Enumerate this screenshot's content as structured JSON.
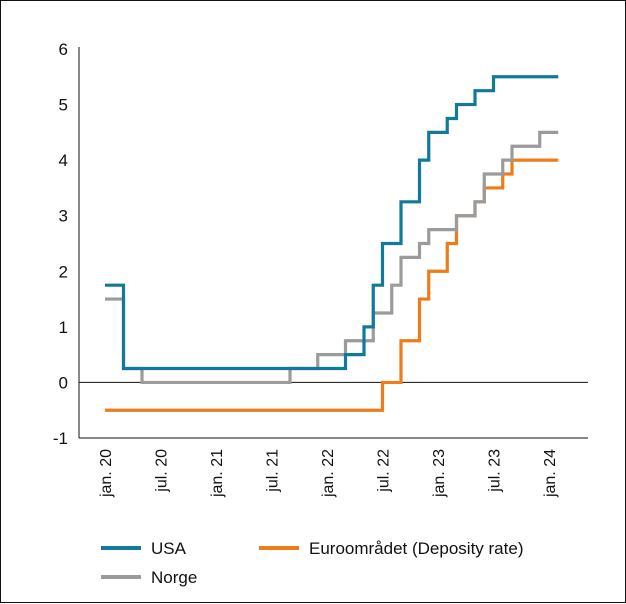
{
  "chart_data": {
    "type": "line",
    "step": true,
    "title": "",
    "xlabel": "",
    "ylabel": "",
    "ylim": [
      -1,
      6
    ],
    "yticks": [
      -1,
      0,
      1,
      2,
      3,
      4,
      5,
      6
    ],
    "xlim": [
      "2020-01",
      "2024-02"
    ],
    "xticks": [
      {
        "label": "jan. 20",
        "date": "2020-01"
      },
      {
        "label": "jul. 20",
        "date": "2020-07"
      },
      {
        "label": "jan. 21",
        "date": "2021-01"
      },
      {
        "label": "jul. 21",
        "date": "2021-07"
      },
      {
        "label": "jan. 22",
        "date": "2022-01"
      },
      {
        "label": "jul. 22",
        "date": "2022-07"
      },
      {
        "label": "jan. 23",
        "date": "2023-01"
      },
      {
        "label": "jul. 23",
        "date": "2023-07"
      },
      {
        "label": "jan. 24",
        "date": "2024-01"
      }
    ],
    "grid": false,
    "legend_position": "bottom",
    "series": [
      {
        "name": "USA",
        "color": "#11799a",
        "points": [
          [
            "2020-01",
            1.75
          ],
          [
            "2020-03",
            1.25
          ],
          [
            "2020-03",
            0.25
          ],
          [
            "2022-03",
            0.5
          ],
          [
            "2022-05",
            1.0
          ],
          [
            "2022-06",
            1.75
          ],
          [
            "2022-07",
            2.5
          ],
          [
            "2022-09",
            3.25
          ],
          [
            "2022-11",
            4.0
          ],
          [
            "2022-12",
            4.5
          ],
          [
            "2023-02",
            4.75
          ],
          [
            "2023-03",
            5.0
          ],
          [
            "2023-05",
            5.25
          ],
          [
            "2023-07",
            5.5
          ],
          [
            "2024-02",
            5.5
          ]
        ]
      },
      {
        "name": "Euroområdet (Deposity rate)",
        "color": "#ed7d1a",
        "points": [
          [
            "2020-01",
            -0.5
          ],
          [
            "2022-07",
            0.0
          ],
          [
            "2022-09",
            0.75
          ],
          [
            "2022-11",
            1.5
          ],
          [
            "2022-12",
            2.0
          ],
          [
            "2023-02",
            2.5
          ],
          [
            "2023-03",
            3.0
          ],
          [
            "2023-05",
            3.25
          ],
          [
            "2023-06",
            3.5
          ],
          [
            "2023-08",
            3.75
          ],
          [
            "2023-09",
            4.0
          ],
          [
            "2024-02",
            4.0
          ]
        ]
      },
      {
        "name": "Norge",
        "color": "#9b9b9b",
        "points": [
          [
            "2020-01",
            1.5
          ],
          [
            "2020-03",
            1.0
          ],
          [
            "2020-03",
            0.25
          ],
          [
            "2020-05",
            0.0
          ],
          [
            "2021-09",
            0.25
          ],
          [
            "2021-12",
            0.5
          ],
          [
            "2022-03",
            0.75
          ],
          [
            "2022-06",
            1.25
          ],
          [
            "2022-08",
            1.75
          ],
          [
            "2022-09",
            2.25
          ],
          [
            "2022-11",
            2.5
          ],
          [
            "2022-12",
            2.75
          ],
          [
            "2023-03",
            3.0
          ],
          [
            "2023-05",
            3.25
          ],
          [
            "2023-06",
            3.75
          ],
          [
            "2023-08",
            4.0
          ],
          [
            "2023-09",
            4.25
          ],
          [
            "2023-12",
            4.5
          ],
          [
            "2024-02",
            4.5
          ]
        ]
      }
    ],
    "legend_order": [
      "USA",
      "Euroområdet (Deposity rate)",
      "Norge"
    ]
  }
}
